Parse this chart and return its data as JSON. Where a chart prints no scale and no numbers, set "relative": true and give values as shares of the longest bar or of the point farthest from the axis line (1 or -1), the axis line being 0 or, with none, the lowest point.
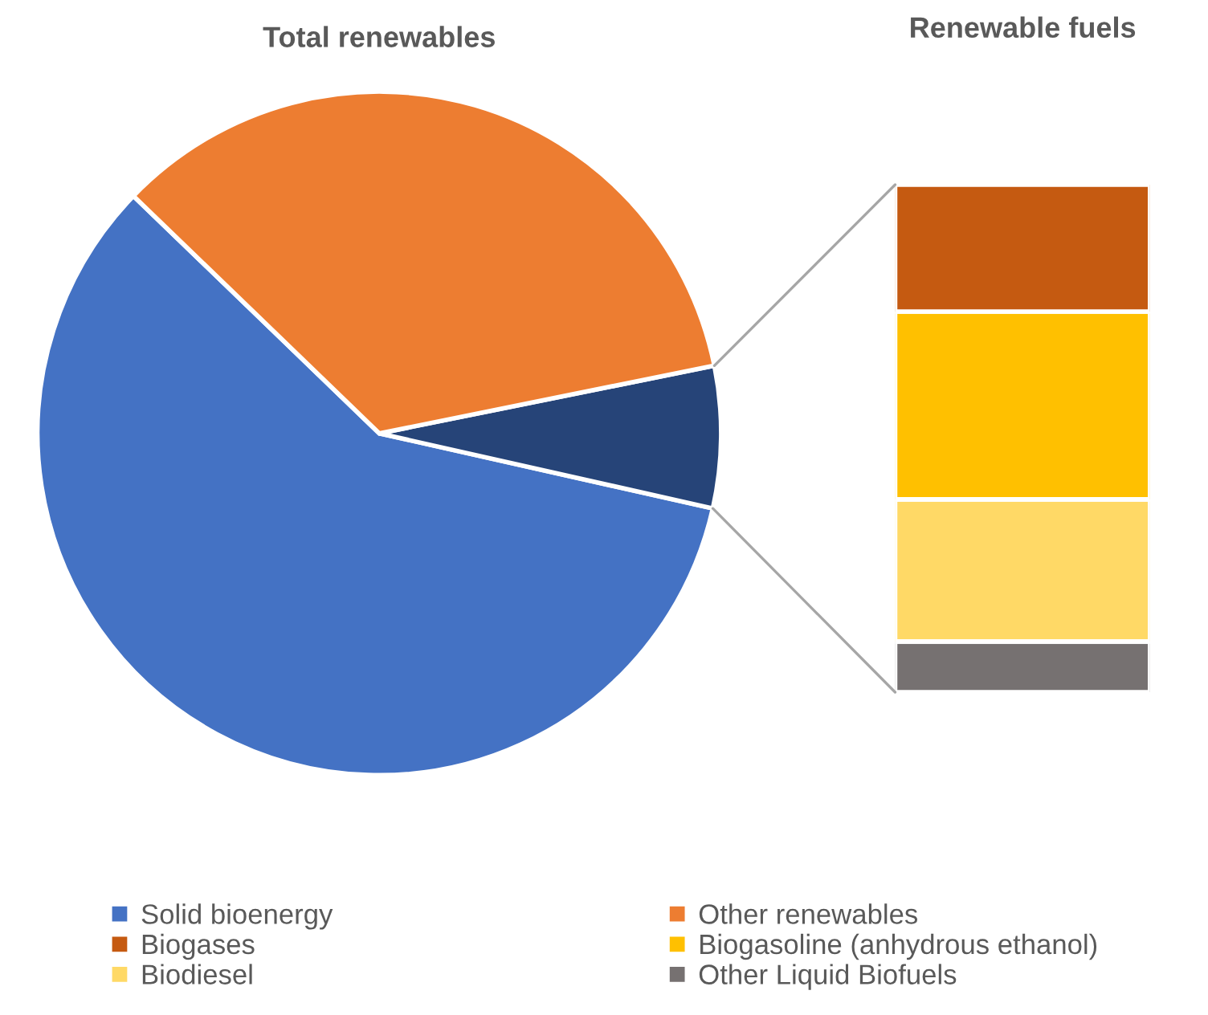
{
  "chart_data": [
    {
      "type": "pie",
      "title": "Total renewables",
      "categories": [
        "Solid bioenergy",
        null,
        "Other renewables"
      ],
      "values": [
        58.7,
        6.7,
        34.6
      ],
      "colors": [
        "#4472c4",
        "#264478",
        "#ed7d31"
      ],
      "legend": "bottom"
    },
    {
      "type": "bar",
      "title": "Renewable fuels",
      "stacked": true,
      "relative": true,
      "categories": [
        null
      ],
      "legend": "bottom",
      "series": [
        {
          "name": "Other Liquid Biofuels",
          "color": "#767171",
          "values": [
            0.1
          ]
        },
        {
          "name": "Biodiesel",
          "color": "#ffd966",
          "values": [
            0.28
          ]
        },
        {
          "name": "Biogasoline (anhydrous ethanol)",
          "color": "#ffc000",
          "values": [
            0.37
          ]
        },
        {
          "name": "Biogases",
          "color": "#c55a11",
          "values": [
            0.25
          ]
        }
      ]
    }
  ]
}
